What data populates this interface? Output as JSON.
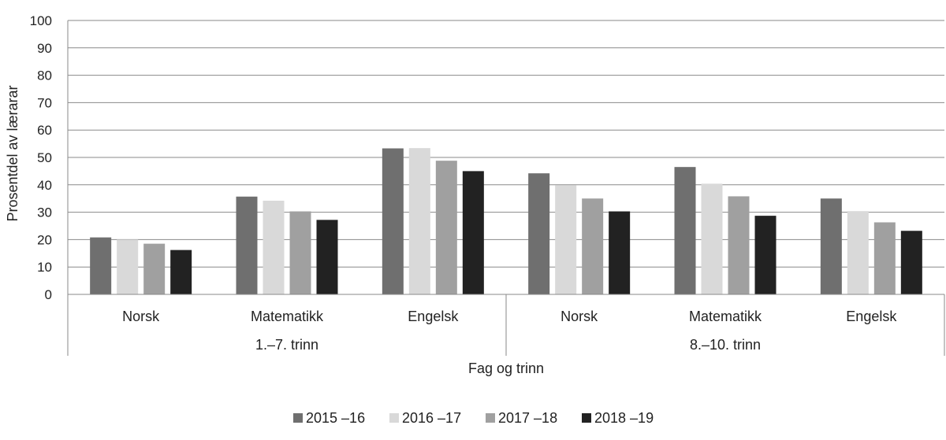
{
  "chart_data": {
    "type": "bar",
    "title": "",
    "xlabel": "Fag og trinn",
    "ylabel": "Prosentdel av lærarar",
    "ylim": [
      0,
      100
    ],
    "yticks": [
      0,
      10,
      20,
      30,
      40,
      50,
      60,
      70,
      80,
      90,
      100
    ],
    "grid": true,
    "legend_position": "bottom",
    "groups": [
      "1.–7. trinn",
      "8.–10. trinn"
    ],
    "categories": [
      "Norsk",
      "Matematikk",
      "Engelsk",
      "Norsk",
      "Matematikk",
      "Engelsk"
    ],
    "series": [
      {
        "name": "2015 –16",
        "color": "#6f6f6f",
        "values": [
          20.8,
          35.7,
          53.3,
          44.2,
          46.5,
          35.0
        ]
      },
      {
        "name": "2016 –17",
        "color": "#d9d9d9",
        "values": [
          20.0,
          34.2,
          53.4,
          39.8,
          40.4,
          30.4
        ]
      },
      {
        "name": "2017 –18",
        "color": "#a0a0a0",
        "values": [
          18.5,
          30.3,
          48.8,
          35.0,
          35.8,
          26.3
        ]
      },
      {
        "name": "2018 –19",
        "color": "#222222",
        "values": [
          16.2,
          27.2,
          45.0,
          30.3,
          28.7,
          23.2
        ]
      }
    ]
  }
}
